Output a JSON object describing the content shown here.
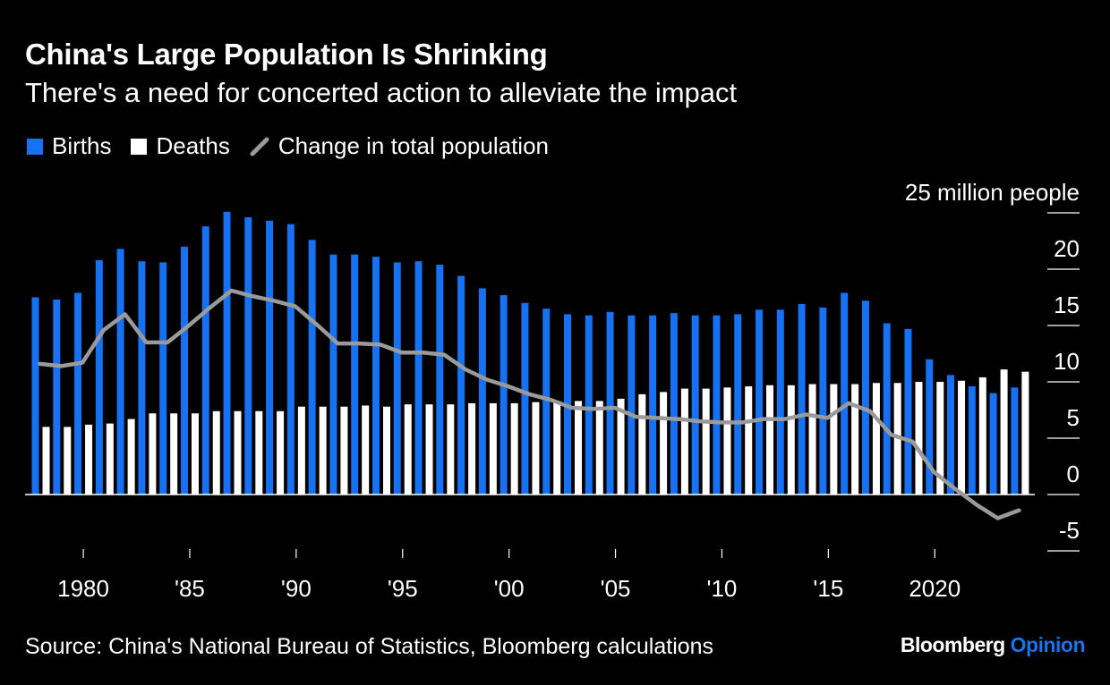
{
  "title": "China's Large Population Is Shrinking",
  "subtitle": "There's a need for concerted action to alleviate the impact",
  "legend": {
    "births": "Births",
    "deaths": "Deaths",
    "change": "Change in total population"
  },
  "colors": {
    "births": "#1672f3",
    "deaths": "#ffffff",
    "change": "#9a9a9a",
    "background": "#000000"
  },
  "source": "Source: China's National Bureau of Statistics, Bloomberg calculations",
  "brand": {
    "name": "Bloomberg",
    "suffix": "Opinion"
  },
  "chart_data": {
    "type": "bar",
    "title": "China's Large Population Is Shrinking",
    "ylabel": "25 million people",
    "ylim": [
      -5,
      25
    ],
    "yticks": [
      -5,
      0,
      5,
      10,
      15,
      20,
      25
    ],
    "ytick_labels": [
      "-5",
      "0",
      "5",
      "10",
      "15",
      "20",
      "25 million people"
    ],
    "xtick_years": [
      1980,
      1985,
      1990,
      1995,
      2000,
      2005,
      2010,
      2015,
      2020
    ],
    "xtick_labels": [
      "1980",
      "'85",
      "'90",
      "'95",
      "'00",
      "'05",
      "'10",
      "'15",
      "2020"
    ],
    "categories": [
      1978,
      1979,
      1980,
      1981,
      1982,
      1983,
      1984,
      1985,
      1986,
      1987,
      1988,
      1989,
      1990,
      1991,
      1992,
      1993,
      1994,
      1995,
      1996,
      1997,
      1998,
      1999,
      2000,
      2001,
      2002,
      2003,
      2004,
      2005,
      2006,
      2007,
      2008,
      2009,
      2010,
      2011,
      2012,
      2013,
      2014,
      2015,
      2016,
      2017,
      2018,
      2019,
      2020,
      2021,
      2022,
      2023,
      2024
    ],
    "series": [
      {
        "name": "Births",
        "kind": "bar",
        "values": [
          17.5,
          17.3,
          17.9,
          20.8,
          21.8,
          20.7,
          20.6,
          22.0,
          23.8,
          25.1,
          24.6,
          24.3,
          24.0,
          22.6,
          21.3,
          21.3,
          21.1,
          20.6,
          20.7,
          20.4,
          19.4,
          18.3,
          17.7,
          17.0,
          16.5,
          16.0,
          15.9,
          16.2,
          15.9,
          15.9,
          16.1,
          15.9,
          15.9,
          16.0,
          16.4,
          16.4,
          16.9,
          16.6,
          17.9,
          17.2,
          15.2,
          14.7,
          12.0,
          10.6,
          9.6,
          9.0,
          9.5
        ]
      },
      {
        "name": "Deaths",
        "kind": "bar",
        "values": [
          6.0,
          6.0,
          6.2,
          6.3,
          6.7,
          7.2,
          7.2,
          7.2,
          7.4,
          7.4,
          7.4,
          7.4,
          7.8,
          7.8,
          7.8,
          7.9,
          7.8,
          8.0,
          8.0,
          8.0,
          8.1,
          8.1,
          8.1,
          8.2,
          8.3,
          8.3,
          8.3,
          8.5,
          8.9,
          9.1,
          9.4,
          9.4,
          9.5,
          9.6,
          9.7,
          9.7,
          9.8,
          9.8,
          9.8,
          9.9,
          9.9,
          10.0,
          10.0,
          10.1,
          10.4,
          11.1,
          10.9
        ]
      },
      {
        "name": "Change in total population",
        "kind": "line",
        "values": [
          11.6,
          11.4,
          11.7,
          14.6,
          16.0,
          13.5,
          13.5,
          15.0,
          16.6,
          18.1,
          17.6,
          17.2,
          16.7,
          15.1,
          13.4,
          13.4,
          13.3,
          12.6,
          12.6,
          12.4,
          11.1,
          10.2,
          9.6,
          8.9,
          8.4,
          7.7,
          7.6,
          7.7,
          6.9,
          6.8,
          6.7,
          6.5,
          6.4,
          6.4,
          6.7,
          6.7,
          7.1,
          6.8,
          8.1,
          7.4,
          5.3,
          4.7,
          2.0,
          0.5,
          -0.9,
          -2.1,
          -1.4
        ]
      }
    ]
  }
}
